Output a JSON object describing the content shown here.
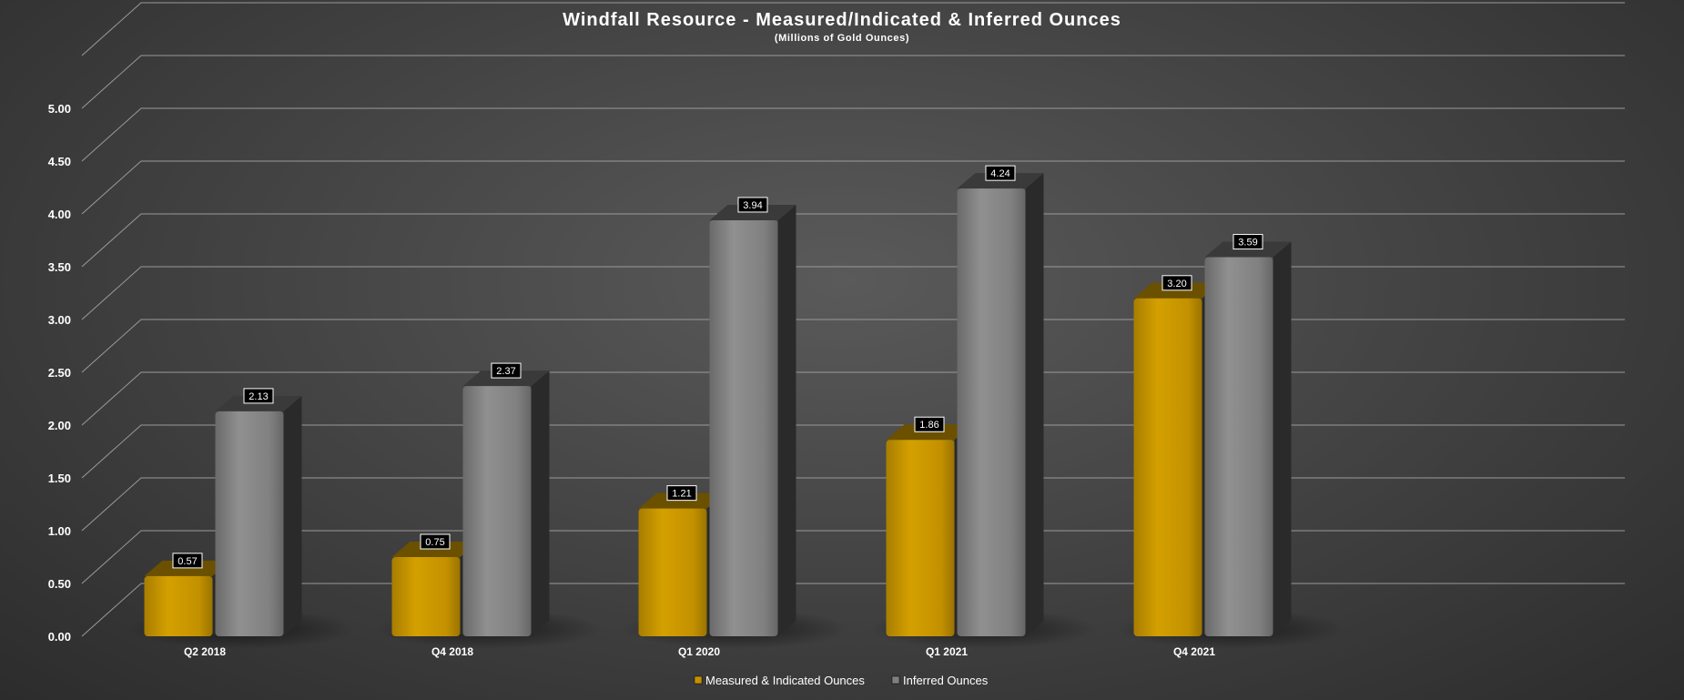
{
  "chart_data": {
    "type": "bar",
    "title": "Windfall Resource - Measured/Indicated & Inferred Ounces",
    "subtitle": "(Millions of Gold Ounces)",
    "categories": [
      "Q2 2018",
      "Q4 2018",
      "Q1 2020",
      "Q1 2021",
      "Q4 2021"
    ],
    "series": [
      {
        "name": "Measured & Indicated Ounces",
        "values": [
          0.57,
          0.75,
          1.21,
          1.86,
          3.2
        ],
        "labels": [
          "0.57",
          "0.75",
          "1.21",
          "1.86",
          "3.20"
        ],
        "color": "#c39100"
      },
      {
        "name": "Inferred Ounces",
        "values": [
          2.13,
          2.37,
          3.94,
          4.24,
          3.59
        ],
        "labels": [
          "2.13",
          "2.37",
          "3.94",
          "4.24",
          "3.59"
        ],
        "color": "#7f7f7f"
      }
    ],
    "ylim": [
      0,
      5.5
    ],
    "yticks": [
      "0.00",
      "0.50",
      "1.00",
      "1.50",
      "2.00",
      "2.50",
      "3.00",
      "3.50",
      "4.00",
      "4.50",
      "5.00"
    ],
    "grid": true,
    "legend_position": "bottom",
    "three_d": true
  }
}
